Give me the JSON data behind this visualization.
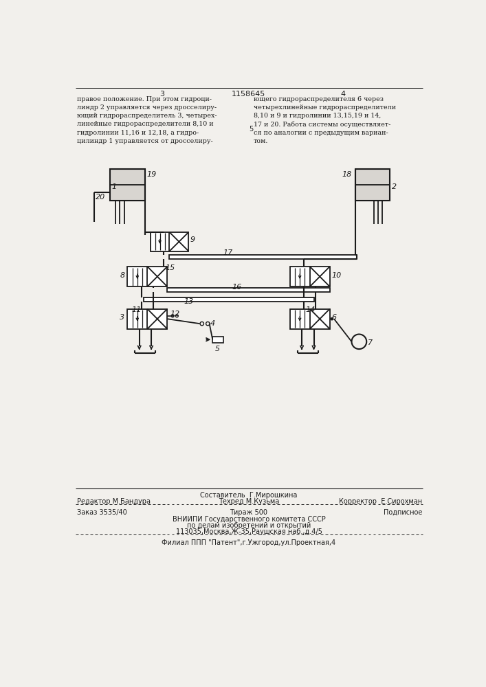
{
  "bg_color": "#f2f0ec",
  "line_color": "#1a1a1a",
  "text_color": "#1a1a1a",
  "page_width": 7.07,
  "page_height": 10.0,
  "header_text_left": "правое положение. При этом гидроци-\nлиндр 2 управляется через дросселиру-\nющий гидрораспределитель 3, четырех-\nлинейные гидрораспределители 8,10 и\nгидролинии 11,16 и 12,18, а гидро-\nцилиндр 1 управляется от дросселиру-",
  "header_text_right": "ющего гидрораспределителя 6 через\nчетырехлинейные гидрораспределители\n8,10 и 9 и гидролинии 13,15,19 и 14,\n17 и 20. Работа системы осуществляет-\nся по аналогии с предыдущим вариан-\nтом.",
  "page_num_left": "3",
  "page_num_center": "1158645",
  "page_num_right": "4",
  "line_5_marker": "5",
  "footer_line1_left": "Редактор М.Бандура",
  "footer_line1_center": "Составитель  Г.Мирошкина",
  "footer_line2_center": "Техред М.Кузьма",
  "footer_line2_right": "Корректор  Е.Сирохман",
  "footer_line3_left": "Заказ 3535/40",
  "footer_line3_center": "Тираж 500",
  "footer_line3_right": "Подписное",
  "footer_line4": "ВНИИПИ Государственного комитета СССР",
  "footer_line5": "по делам изобретений и открытий",
  "footer_line6": "113035,Москва,Ж-35,Раушская наб.,д.4/5",
  "footer_last": "Филиал ППП \"Патент\",г.Ужгород,ул.Проектная,4"
}
